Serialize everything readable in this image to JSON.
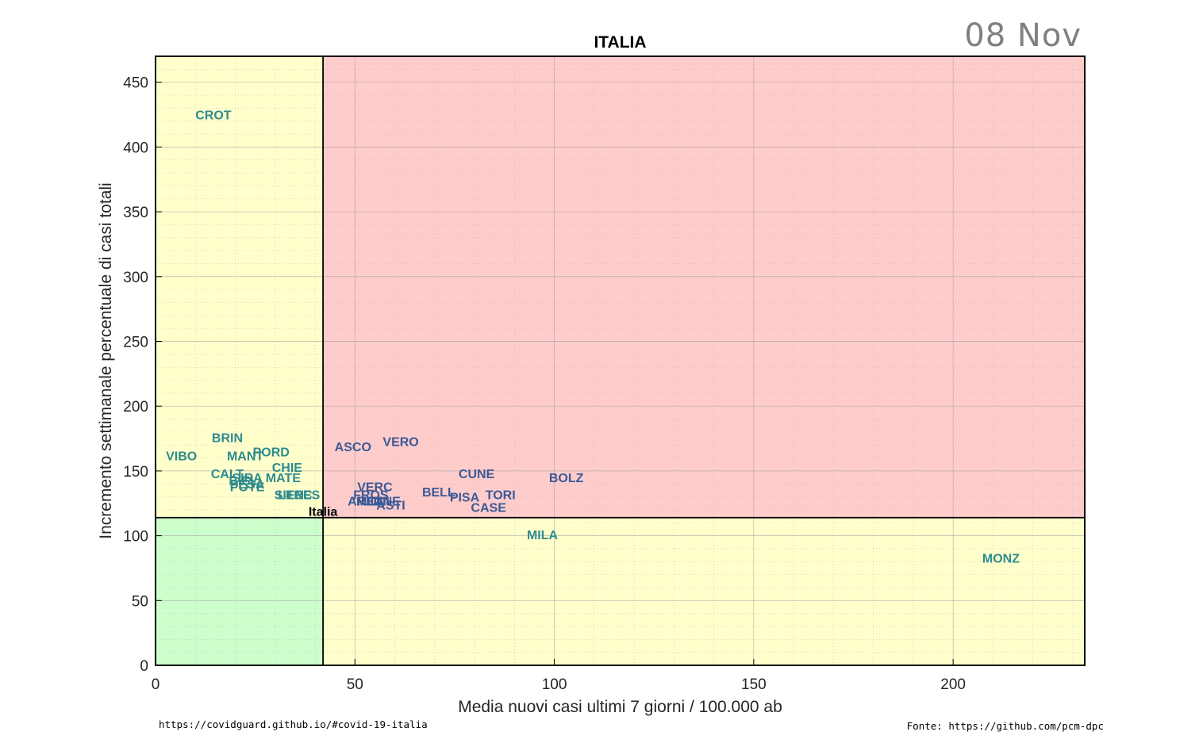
{
  "header": {
    "date": "08 Nov",
    "title": "ITALIA"
  },
  "footer": {
    "left": "https://covidguard.github.io/#covid-19-italia",
    "right": "Fonte: https://github.com/pcm-dpc"
  },
  "colors": {
    "red_zone": "#ffcccc",
    "yellow_zone": "#ffffcc",
    "green_zone": "#ccffcc",
    "label_red_zone": "#3a5a96",
    "label_yellow_zone": "#2e8b8f",
    "italia": "#000000"
  },
  "chart_data": {
    "type": "scatter",
    "title": "ITALIA",
    "xlabel": "Media nuovi casi ultimi 7 giorni / 100.000 ab",
    "ylabel": "Incremento settimanale percentuale di casi totali",
    "xlim": [
      0,
      233
    ],
    "ylim": [
      0,
      470
    ],
    "xticks": [
      0,
      50,
      100,
      150,
      200
    ],
    "yticks": [
      0,
      50,
      100,
      150,
      200,
      250,
      300,
      350,
      400,
      450
    ],
    "grid": true,
    "thresholds": {
      "x": 42,
      "y": 114
    },
    "points": [
      {
        "label": "CROT",
        "x": 14.5,
        "y": 425
      },
      {
        "label": "BRIN",
        "x": 18,
        "y": 176
      },
      {
        "label": "VIBO",
        "x": 6.5,
        "y": 162
      },
      {
        "label": "MANT",
        "x": 22.5,
        "y": 162
      },
      {
        "label": "PORD",
        "x": 29,
        "y": 165
      },
      {
        "label": "CHIE",
        "x": 33,
        "y": 153
      },
      {
        "label": "CALT",
        "x": 18,
        "y": 148
      },
      {
        "label": "MATE",
        "x": 32,
        "y": 145
      },
      {
        "label": "BIEL",
        "x": 22,
        "y": 143
      },
      {
        "label": "SIRA",
        "x": 23,
        "y": 145
      },
      {
        "label": "PESA",
        "x": 23,
        "y": 140
      },
      {
        "label": "POTE",
        "x": 23,
        "y": 138
      },
      {
        "label": "SIEN",
        "x": 33.5,
        "y": 132
      },
      {
        "label": "LECC",
        "x": 35,
        "y": 132
      },
      {
        "label": "TRES",
        "x": 37,
        "y": 132
      },
      {
        "label": "ASCO",
        "x": 49.5,
        "y": 169
      },
      {
        "label": "VERO",
        "x": 61.5,
        "y": 173
      },
      {
        "label": "VERC",
        "x": 55,
        "y": 138
      },
      {
        "label": "FROS",
        "x": 54,
        "y": 132
      },
      {
        "label": "AREZ",
        "x": 52.5,
        "y": 127
      },
      {
        "label": "MONI",
        "x": 54.5,
        "y": 127
      },
      {
        "label": "UDINE",
        "x": 56.5,
        "y": 127
      },
      {
        "label": "ASTI",
        "x": 59,
        "y": 124
      },
      {
        "label": "BELL",
        "x": 71,
        "y": 134
      },
      {
        "label": "PISA",
        "x": 77.5,
        "y": 130
      },
      {
        "label": "CUNE",
        "x": 80.5,
        "y": 148
      },
      {
        "label": "TORI",
        "x": 86.5,
        "y": 132
      },
      {
        "label": "CASE",
        "x": 83.5,
        "y": 122
      },
      {
        "label": "BOLZ",
        "x": 103,
        "y": 145
      },
      {
        "label": "MILA",
        "x": 97,
        "y": 101
      },
      {
        "label": "MONZ",
        "x": 212,
        "y": 83
      },
      {
        "label": "Italia",
        "x": 42,
        "y": 119
      }
    ]
  }
}
